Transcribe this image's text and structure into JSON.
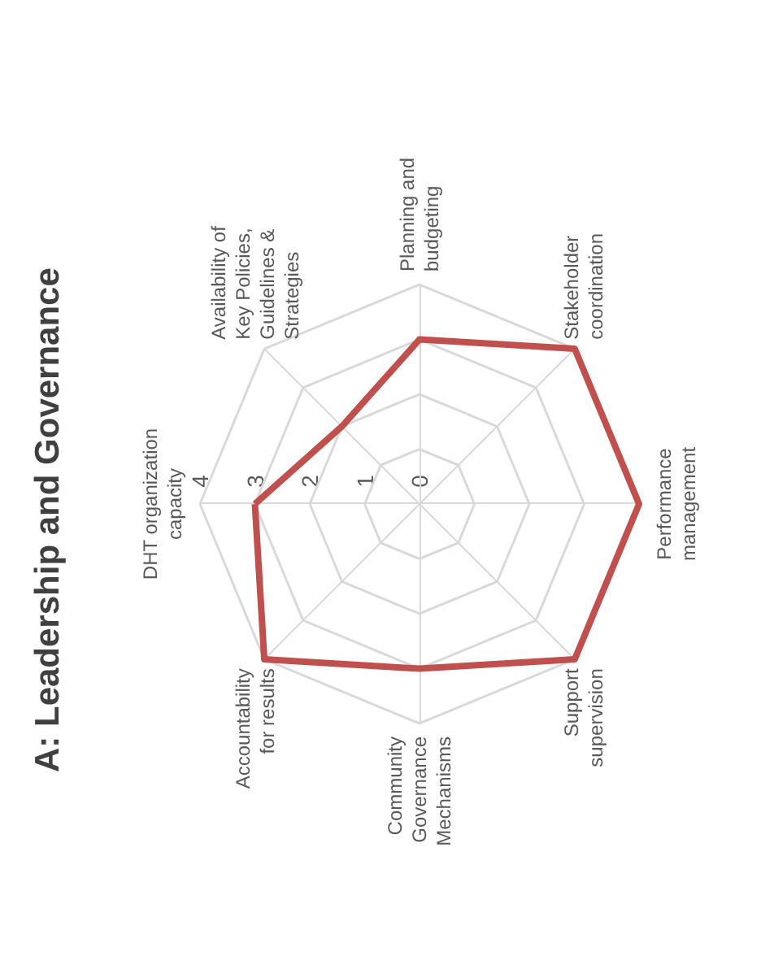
{
  "chart_data": {
    "type": "radar",
    "title": "A: Leadership and Governance",
    "categories": [
      "DHT organization capacity",
      "Availability of Key Policies, Guidelines & Strategies",
      "Planning and budgeting",
      "Stakeholder coordination",
      "Performance management",
      "Support supervision",
      "Community Governance Mechanisms",
      "Accountability for results"
    ],
    "series": [
      {
        "color": "#c0504d",
        "values": [
          3,
          2,
          3,
          4,
          4,
          4,
          3,
          4
        ]
      }
    ],
    "ylim": [
      0,
      4
    ],
    "yticks": [
      0,
      1,
      2,
      3,
      4
    ],
    "grid": true,
    "marker": "none",
    "line_style": "solid"
  }
}
